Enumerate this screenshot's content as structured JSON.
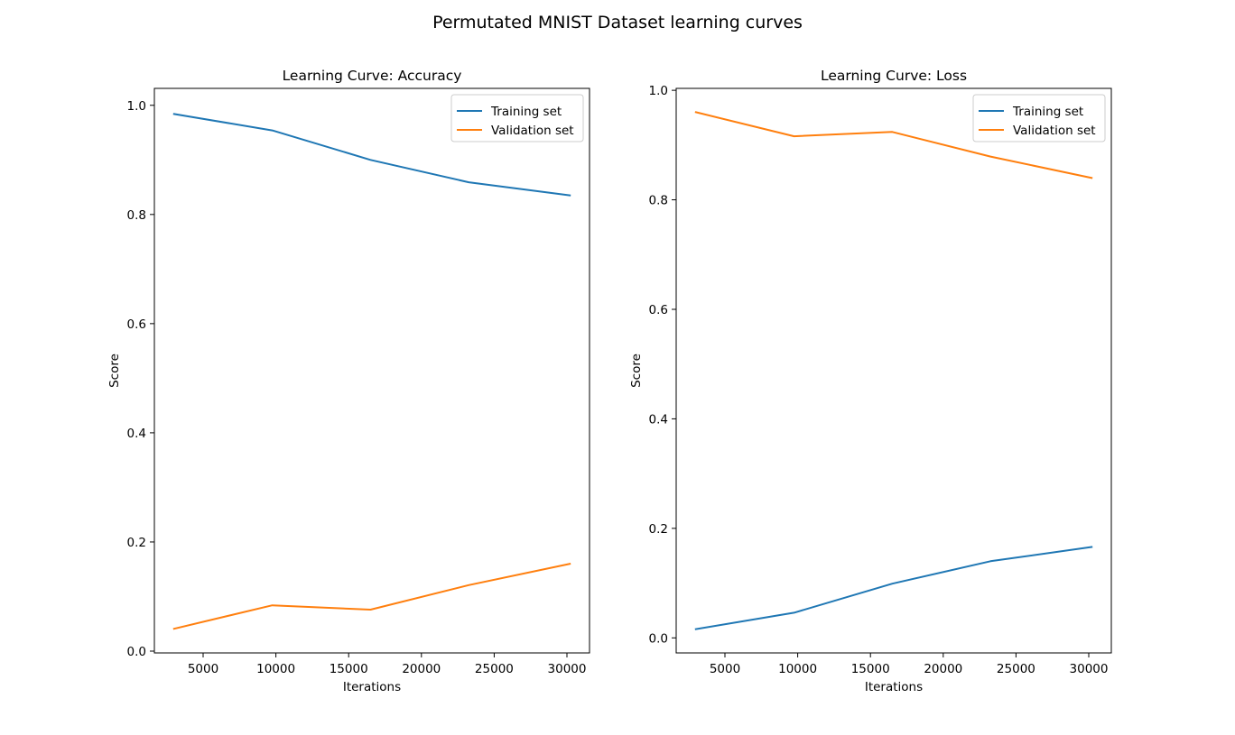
{
  "figure": {
    "suptitle": "Permutated MNIST Dataset learning curves"
  },
  "colors": {
    "training": "#1f77b4",
    "validation": "#ff7f0e"
  },
  "chart_data": [
    {
      "type": "line",
      "title": "Learning Curve: Accuracy",
      "xlabel": "Iterations",
      "ylabel": "Score",
      "xlim": [
        1650,
        31550
      ],
      "ylim": [
        -0.0033,
        1.031
      ],
      "xticks": [
        5000,
        10000,
        15000,
        20000,
        25000,
        30000
      ],
      "yticks": [
        0.0,
        0.2,
        0.4,
        0.6,
        0.8,
        1.0
      ],
      "ytick_labels": [
        "0.0",
        "0.2",
        "0.4",
        "0.6",
        "0.8",
        "1.0"
      ],
      "grid": false,
      "legend_position": "upper right",
      "x": [
        3000,
        9750,
        16500,
        23250,
        30200
      ],
      "series": [
        {
          "name": "Training set",
          "color": "#1f77b4",
          "values": [
            0.984,
            0.954,
            0.9,
            0.859,
            0.835
          ]
        },
        {
          "name": "Validation set",
          "color": "#ff7f0e",
          "values": [
            0.041,
            0.084,
            0.076,
            0.121,
            0.16
          ]
        }
      ]
    },
    {
      "type": "line",
      "title": "Learning Curve: Loss",
      "xlabel": "Iterations",
      "ylabel": "Score",
      "xlim": [
        1650,
        31550
      ],
      "ylim": [
        -0.0275,
        1.0035
      ],
      "xticks": [
        5000,
        10000,
        15000,
        20000,
        25000,
        30000
      ],
      "yticks": [
        0.0,
        0.2,
        0.4,
        0.6,
        0.8,
        1.0
      ],
      "ytick_labels": [
        "0.0",
        "0.2",
        "0.4",
        "0.6",
        "0.8",
        "1.0"
      ],
      "grid": false,
      "legend_position": "upper right",
      "x": [
        3000,
        9750,
        16500,
        23250,
        30200
      ],
      "series": [
        {
          "name": "Training set",
          "color": "#1f77b4",
          "values": [
            0.016,
            0.046,
            0.099,
            0.14,
            0.166
          ]
        },
        {
          "name": "Validation set",
          "color": "#ff7f0e",
          "values": [
            0.96,
            0.916,
            0.924,
            0.879,
            0.84
          ]
        }
      ]
    }
  ]
}
